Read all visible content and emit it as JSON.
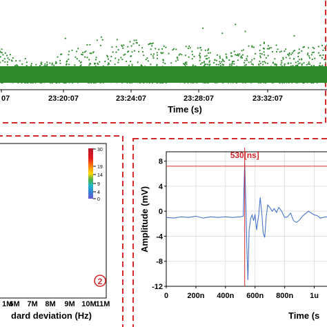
{
  "colors": {
    "frame": "#d62728",
    "scatter": "#2e8b2e",
    "waveform": "#4a74c9",
    "marker": "#d62728"
  },
  "chart_data": [
    {
      "type": "scatter",
      "xlabel": "Time (s)",
      "x_ticks": [
        "07",
        "23:20:07",
        "23:24:07",
        "23:28:07",
        "23:32:07"
      ],
      "density_profile": [
        {
          "x": 0.0,
          "top": 0.58
        },
        {
          "x": 0.05,
          "top": 0.45
        },
        {
          "x": 0.1,
          "top": 0.33
        },
        {
          "x": 0.15,
          "top": 0.35
        },
        {
          "x": 0.2,
          "top": 0.52
        },
        {
          "x": 0.25,
          "top": 0.6
        },
        {
          "x": 0.3,
          "top": 0.68
        },
        {
          "x": 0.35,
          "top": 0.72
        },
        {
          "x": 0.4,
          "top": 0.7
        },
        {
          "x": 0.45,
          "top": 0.64
        },
        {
          "x": 0.5,
          "top": 0.62
        },
        {
          "x": 0.55,
          "top": 0.58
        },
        {
          "x": 0.6,
          "top": 0.62
        },
        {
          "x": 0.65,
          "top": 0.52
        },
        {
          "x": 0.7,
          "top": 0.47
        },
        {
          "x": 0.75,
          "top": 0.6
        },
        {
          "x": 0.8,
          "top": 0.66
        },
        {
          "x": 0.85,
          "top": 0.6
        },
        {
          "x": 0.9,
          "top": 0.55
        },
        {
          "x": 0.95,
          "top": 0.58
        },
        {
          "x": 1.0,
          "top": 0.6
        }
      ]
    },
    {
      "type": "heatmap",
      "xlabel": "dard deviation (Hz)",
      "x_ticks": [
        "1M",
        "6M",
        "7M",
        "8M",
        "9M",
        "10M",
        "11M"
      ],
      "colorbar_ticks": [
        "30",
        "19",
        "14",
        "9",
        "4",
        "0"
      ],
      "panel_number": "2"
    },
    {
      "type": "line",
      "xlabel": "Time (s",
      "ylabel": "Amplitude (mV)",
      "x_ticks": [
        "0",
        "200n",
        "400n",
        "600n",
        "800n",
        "1u"
      ],
      "y_ticks": [
        "8",
        "4",
        "0",
        "-4",
        "-8",
        "-12"
      ],
      "ylim": [
        -12,
        9.5
      ],
      "xlim": [
        0,
        1.1e-06
      ],
      "marker": {
        "x": 5.3e-07,
        "label": "530[ns]",
        "hline_y": 7.2
      },
      "series": [
        {
          "x": [
            0,
            5e-08,
            1e-07,
            1.5e-07,
            2e-07,
            2.5e-07,
            3e-07,
            3.5e-07,
            4e-07,
            4.5e-07,
            5e-07,
            5.2e-07,
            5.3e-07,
            5.38e-07,
            5.45e-07,
            5.52e-07,
            5.6e-07,
            5.7e-07,
            5.8e-07,
            5.9e-07,
            6e-07,
            6.1e-07,
            6.25e-07,
            6.35e-07,
            6.45e-07,
            6.55e-07,
            6.65e-07,
            6.75e-07,
            6.85e-07,
            7e-07,
            7.15e-07,
            7.3e-07,
            7.45e-07,
            7.6e-07,
            7.8e-07,
            8e-07,
            8.2e-07,
            8.4e-07,
            8.6e-07,
            8.8e-07,
            9e-07,
            9.2e-07,
            9.4e-07,
            9.6e-07,
            9.8e-07,
            1e-06,
            1.02e-06,
            1.04e-06,
            1.06e-06,
            1.08e-06,
            1.1e-06
          ],
          "y": [
            -1.0,
            -1.1,
            -0.9,
            -1.0,
            -0.8,
            -1.1,
            -0.9,
            -1.0,
            -0.9,
            -1.0,
            -0.9,
            -0.8,
            7.8,
            1.0,
            -6.0,
            -11.0,
            -3.0,
            -1.2,
            -0.6,
            -1.5,
            -0.5,
            -3.0,
            -0.5,
            2.2,
            -0.2,
            -3.5,
            -4.2,
            -1.0,
            1.0,
            0.6,
            0.0,
            0.4,
            -0.2,
            0.6,
            0.0,
            -1.0,
            -0.9,
            -0.3,
            -1.5,
            -1.8,
            -1.4,
            -0.8,
            -0.4,
            0.0,
            -0.3,
            -0.6,
            -0.7,
            -1.1,
            -1.0,
            -0.9,
            -1.0
          ]
        }
      ]
    }
  ]
}
